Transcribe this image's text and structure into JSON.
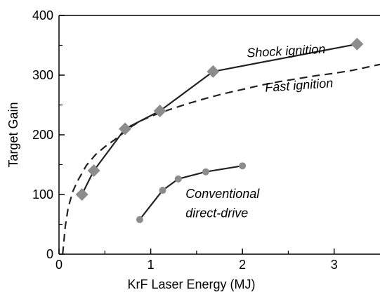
{
  "chart_data": {
    "type": "line",
    "xlabel": "KrF Laser Energy (MJ)",
    "ylabel": "Target Gain",
    "xlim": [
      0,
      3.5
    ],
    "ylim": [
      0,
      400
    ],
    "xticks": [
      0,
      1,
      2,
      3
    ],
    "xtick_labels": [
      "0",
      "1",
      "2",
      "3"
    ],
    "yticks": [
      0,
      100,
      200,
      300,
      400
    ],
    "ytick_labels": [
      "0",
      "100",
      "200",
      "300",
      "400"
    ],
    "grid": false,
    "series": [
      {
        "name": "Shock ignition",
        "style": "solid",
        "marker": "diamond",
        "color": "#222222",
        "marker_color": "#8c8c8c",
        "x": [
          0.25,
          0.38,
          0.72,
          1.1,
          1.68,
          3.25
        ],
        "y": [
          100,
          140,
          210,
          240,
          306,
          352
        ]
      },
      {
        "name": "Fast ignition",
        "style": "dashed",
        "marker": "none",
        "color": "#222222",
        "x": [
          0.04,
          0.07,
          0.1,
          0.15,
          0.2,
          0.3,
          0.4,
          0.5,
          0.6,
          0.7,
          0.8,
          0.9,
          1.0,
          1.2,
          1.4,
          1.6,
          1.8,
          2.0,
          2.2,
          2.4,
          2.6,
          2.8,
          3.0,
          3.2,
          3.5
        ],
        "y": [
          0,
          48,
          78,
          105,
          122,
          149,
          167,
          180,
          191,
          203,
          215,
          224,
          231,
          242,
          252,
          261,
          269,
          276,
          283,
          289,
          294,
          299,
          303,
          308,
          318
        ]
      },
      {
        "name": "Conventional direct-drive",
        "style": "solid",
        "marker": "circle",
        "color": "#222222",
        "marker_color": "#8c8c8c",
        "x": [
          0.88,
          1.13,
          1.3,
          1.6,
          2.0
        ],
        "y": [
          58,
          107,
          126,
          138,
          148
        ]
      }
    ],
    "annotations": [
      {
        "text": "Shock ignition",
        "x": 2.05,
        "y": 330
      },
      {
        "text": "Fast ignition",
        "x": 2.25,
        "y": 272
      },
      {
        "text": "Conventional",
        "x": 1.38,
        "y": 94
      },
      {
        "text": "direct-drive",
        "x": 1.38,
        "y": 62
      }
    ]
  }
}
